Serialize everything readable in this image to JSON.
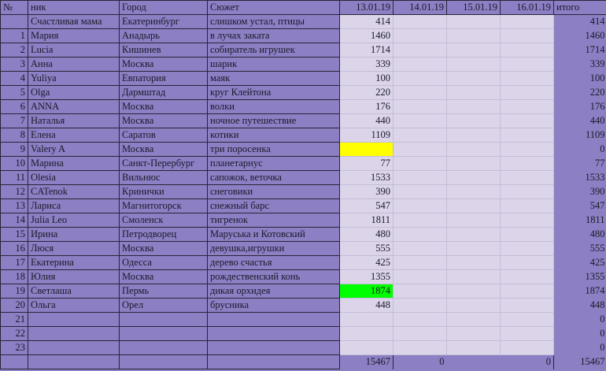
{
  "colors": {
    "header_bg": "#8c7fc3",
    "data_bg": "#dcd5ea",
    "highlight_yellow": "#ffff00",
    "highlight_green": "#00ff00"
  },
  "headers": {
    "num": "№",
    "nick": "ник",
    "city": "Город",
    "plot": "Сюжет",
    "d1": "13.01.19",
    "d2": "14.01.19",
    "d3": "15.01.19",
    "d4": "16.01.19",
    "total": "итого"
  },
  "rows": [
    {
      "num": "",
      "nick": "Счастливая мама",
      "city": "Екатеринбург",
      "plot": "слишком устал, птицы",
      "d1": "414",
      "total": "414"
    },
    {
      "num": "1",
      "nick": "Мария",
      "city": "Анадырь",
      "plot": "в лучах заката",
      "d1": "1460",
      "total": "1460"
    },
    {
      "num": "2",
      "nick": "Lucia",
      "city": "Кишинев",
      "plot": "собиратель игрушек",
      "d1": "1714",
      "total": "1714"
    },
    {
      "num": "3",
      "nick": "Анна",
      "city": "Москва",
      "plot": "шарик",
      "d1": "339",
      "total": "339"
    },
    {
      "num": "4",
      "nick": "Yuliya",
      "city": "Евпатория",
      "plot": "маяк",
      "d1": "100",
      "total": "100"
    },
    {
      "num": "5",
      "nick": "Olga",
      "city": "Дармштад",
      "plot": "круг Клейтона",
      "d1": "220",
      "total": "220"
    },
    {
      "num": "6",
      "nick": "ANNA",
      "city": "Москва",
      "plot": "волки",
      "d1": "176",
      "total": "176"
    },
    {
      "num": "7",
      "nick": "Наталья",
      "city": "Москва",
      "plot": "ночное путешествие",
      "d1": "440",
      "total": "440"
    },
    {
      "num": "8",
      "nick": "Елена",
      "city": "Саратов",
      "plot": "котики",
      "d1": "1109",
      "total": "1109"
    },
    {
      "num": "9",
      "nick": "Valery A",
      "city": "Москва",
      "plot": "три поросенка",
      "d1": "",
      "total": "0",
      "highlight": "yellow"
    },
    {
      "num": "10",
      "nick": "Марина",
      "city": "Санкт-Перербург",
      "plot": "планетарнус",
      "d1": "77",
      "total": "77"
    },
    {
      "num": "11",
      "nick": "Olesia",
      "city": "Вильнюс",
      "plot": "сапожок, веточка",
      "d1": "1533",
      "total": "1533"
    },
    {
      "num": "12",
      "nick": "CATenok",
      "city": "Кринички",
      "plot": "снеговики",
      "d1": "390",
      "total": "390"
    },
    {
      "num": "13",
      "nick": "Лариса",
      "city": "Магнитогорск",
      "plot": "снежный барс",
      "d1": "547",
      "total": "547"
    },
    {
      "num": "14",
      "nick": "Julia Leo",
      "city": "Смоленск",
      "plot": "тигренок",
      "d1": "1811",
      "total": "1811"
    },
    {
      "num": "15",
      "nick": "Ирина",
      "city": "Петродворец",
      "plot": "Маруська и Котовский",
      "d1": "480",
      "total": "480"
    },
    {
      "num": "16",
      "nick": "Люся",
      "city": "Москва",
      "plot": "девушка,игрушки",
      "d1": "555",
      "total": "555"
    },
    {
      "num": "17",
      "nick": "Екатерина",
      "city": "Одесса",
      "plot": "дерево счастья",
      "d1": "425",
      "total": "425"
    },
    {
      "num": "18",
      "nick": "Юлия",
      "city": "Москва",
      "plot": "рождественский конь",
      "d1": "1355",
      "total": "1355"
    },
    {
      "num": "19",
      "nick": "Светлаша",
      "city": "Пермь",
      "plot": "дикая орхидея",
      "d1": "1874",
      "total": "1874",
      "highlight": "green"
    },
    {
      "num": "20",
      "nick": "Ольга",
      "city": "Орел",
      "plot": "брусника",
      "d1": "448",
      "total": "448"
    },
    {
      "num": "21",
      "nick": "",
      "city": "",
      "plot": "",
      "d1": "",
      "total": "0"
    },
    {
      "num": "22",
      "nick": "",
      "city": "",
      "plot": "",
      "d1": "",
      "total": "0"
    },
    {
      "num": "23",
      "nick": "",
      "city": "",
      "plot": "",
      "d1": "",
      "total": "0"
    }
  ],
  "footer": {
    "d1": "15467",
    "d2": "0",
    "d3": "",
    "d4": "0",
    "total": "15467"
  }
}
